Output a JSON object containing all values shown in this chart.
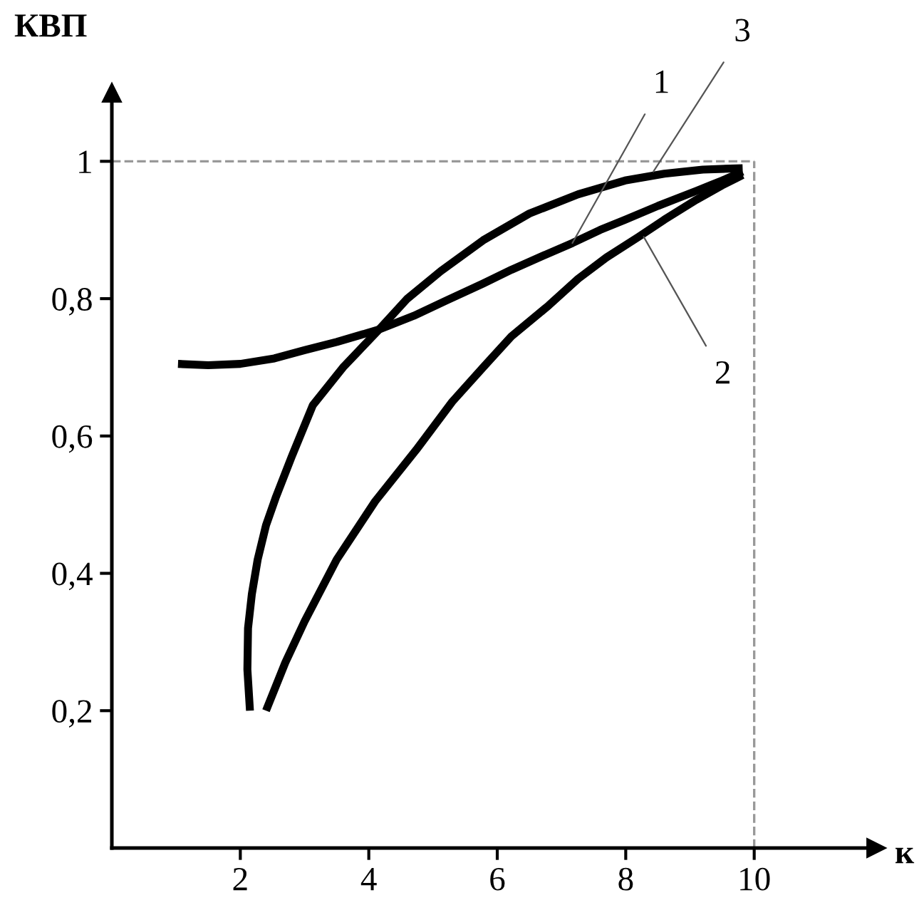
{
  "chart_data": {
    "type": "line",
    "xlabel": "к",
    "ylabel": "КВП",
    "xlim": [
      0,
      11.9
    ],
    "ylim": [
      0,
      1.1
    ],
    "xticks": [
      2,
      4,
      6,
      8,
      10
    ],
    "yticks": [
      {
        "value": 0.2,
        "label": "0,2"
      },
      {
        "value": 0.4,
        "label": "0,4"
      },
      {
        "value": 0.6,
        "label": "0,6"
      },
      {
        "value": 0.8,
        "label": "0,8"
      },
      1
    ],
    "grid": false,
    "legend": false,
    "marker": "none",
    "line_style": "solid",
    "series": [
      {
        "color": "#000000",
        "x": [
          1.03,
          1.5,
          2.0,
          2.53,
          3.0,
          3.5,
          4.16,
          4.7,
          5.2,
          5.78,
          6.22,
          6.7,
          7.17,
          7.6,
          7.99,
          8.5,
          9.1,
          9.5,
          9.82
        ],
        "values": [
          0.705,
          0.703,
          0.705,
          0.713,
          0.725,
          0.737,
          0.755,
          0.775,
          0.797,
          0.822,
          0.842,
          0.862,
          0.881,
          0.9,
          0.915,
          0.935,
          0.957,
          0.972,
          0.985
        ]
      },
      {
        "color": "#000000",
        "x": [
          2.15,
          2.11,
          2.12,
          2.18,
          2.27,
          2.4,
          2.55,
          2.8,
          3.13,
          3.6,
          4.16,
          4.6,
          5.12,
          5.78,
          6.5,
          7.26,
          7.99,
          8.6,
          9.2,
          9.82
        ],
        "values": [
          0.2,
          0.26,
          0.32,
          0.37,
          0.42,
          0.47,
          0.51,
          0.57,
          0.645,
          0.7,
          0.755,
          0.8,
          0.84,
          0.885,
          0.924,
          0.952,
          0.972,
          0.982,
          0.988,
          0.99
        ]
      },
      {
        "color": "#000000",
        "x": [
          2.4,
          2.7,
          3.0,
          3.5,
          4.1,
          4.74,
          5.3,
          5.78,
          6.22,
          6.8,
          7.26,
          7.7,
          8.2,
          8.6,
          9.1,
          9.5,
          9.82
        ],
        "values": [
          0.2,
          0.27,
          0.33,
          0.42,
          0.505,
          0.58,
          0.65,
          0.7,
          0.745,
          0.79,
          0.829,
          0.86,
          0.89,
          0.915,
          0.944,
          0.965,
          0.98
        ]
      }
    ],
    "ref_lines": [
      {
        "axis": "y",
        "value": 1,
        "color": "#999999",
        "line_style": "dashed"
      },
      {
        "axis": "x",
        "value": 10,
        "color": "#999999",
        "line_style": "dashed"
      }
    ],
    "annotations": [
      {
        "text": "1",
        "x": 7.17,
        "y": 0.881
      },
      {
        "text": "3",
        "x": 8.43,
        "y": 0.985
      },
      {
        "text": "2",
        "x": 8.28,
        "y": 0.89
      }
    ]
  }
}
